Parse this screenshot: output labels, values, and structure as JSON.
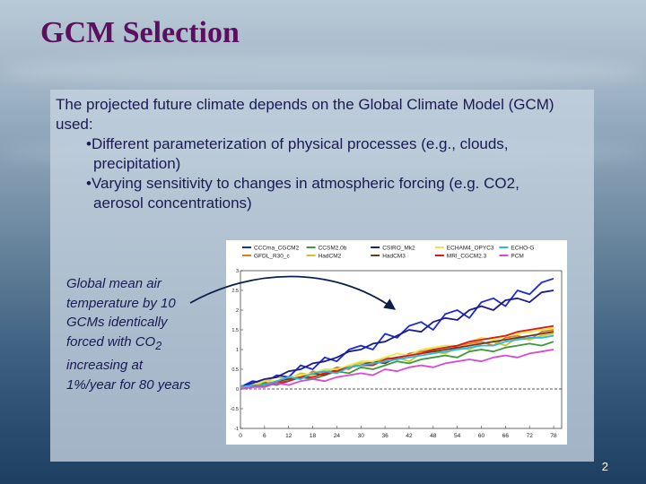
{
  "slide": {
    "title": "GCM Selection",
    "intro_line": "The projected future climate depends on the Global Climate Model (GCM) used:",
    "bullets": [
      {
        "line1": "•Different parameterization of physical processes (e.g., clouds,",
        "line2": "precipitation)"
      },
      {
        "line1": "•Varying sensitivity to changes in atmospheric forcing (e.g. CO2,",
        "line2": "aerosol concentrations)"
      }
    ],
    "caption_before_sub": "Global mean air temperature by 10 GCMs identically forced with CO",
    "caption_sub": "2",
    "caption_after_sub": " increasing at 1%/year for 80 years",
    "page_number": "2"
  },
  "chart_data": {
    "type": "line",
    "x": [
      0,
      3,
      6,
      9,
      12,
      15,
      18,
      21,
      24,
      27,
      30,
      33,
      36,
      39,
      42,
      45,
      48,
      51,
      54,
      57,
      60,
      63,
      66,
      69,
      72,
      75,
      78
    ],
    "xticks": [
      "0",
      "6",
      "12",
      "18",
      "24",
      "30",
      "36",
      "42",
      "48",
      "54",
      "60",
      "66",
      "72",
      "78"
    ],
    "yticks": [
      "-1",
      "-0.5",
      "0",
      "0.5",
      "1",
      "1.5",
      "2",
      "2.5",
      "3"
    ],
    "ylim": [
      -1,
      3
    ],
    "xlim": [
      0,
      80
    ],
    "series": [
      {
        "name": "CCCma_CGCM2",
        "color": "#1a2bd6",
        "values": [
          0.05,
          0.2,
          0.15,
          0.35,
          0.3,
          0.6,
          0.5,
          0.8,
          0.7,
          1.0,
          1.1,
          1.0,
          1.4,
          1.3,
          1.6,
          1.7,
          1.5,
          1.9,
          2.0,
          1.8,
          2.2,
          2.3,
          2.1,
          2.5,
          2.4,
          2.7,
          2.8
        ]
      },
      {
        "name": "GFDL_R30_c",
        "color": "#e37b1e",
        "values": [
          0.0,
          0.1,
          0.2,
          0.15,
          0.3,
          0.25,
          0.45,
          0.4,
          0.55,
          0.5,
          0.7,
          0.65,
          0.8,
          0.75,
          0.9,
          0.95,
          1.0,
          0.9,
          1.1,
          1.15,
          1.2,
          1.1,
          1.3,
          1.35,
          1.25,
          1.45,
          1.5
        ]
      },
      {
        "name": "CCSM2.0b",
        "color": "#3a9a3a",
        "values": [
          0.0,
          0.05,
          0.15,
          0.1,
          0.2,
          0.3,
          0.25,
          0.35,
          0.45,
          0.4,
          0.55,
          0.5,
          0.6,
          0.7,
          0.65,
          0.75,
          0.8,
          0.85,
          0.8,
          0.95,
          1.0,
          0.95,
          1.05,
          1.1,
          1.15,
          1.1,
          1.2
        ]
      },
      {
        "name": "HadCM2",
        "color": "#c8c82a",
        "values": [
          0.1,
          0.05,
          0.2,
          0.3,
          0.25,
          0.4,
          0.35,
          0.5,
          0.45,
          0.6,
          0.65,
          0.6,
          0.75,
          0.8,
          0.7,
          0.9,
          0.95,
          0.9,
          1.05,
          1.0,
          1.15,
          1.2,
          1.1,
          1.3,
          1.25,
          1.35,
          1.4
        ]
      },
      {
        "name": "CSIRO_Mk2",
        "color": "#1b1b8a",
        "values": [
          0.05,
          0.15,
          0.25,
          0.3,
          0.45,
          0.5,
          0.65,
          0.7,
          0.8,
          0.95,
          1.0,
          1.15,
          1.2,
          1.35,
          1.5,
          1.45,
          1.7,
          1.8,
          1.75,
          2.0,
          2.1,
          2.0,
          2.25,
          2.3,
          2.2,
          2.45,
          2.5
        ]
      },
      {
        "name": "HadCM3",
        "color": "#6b3a1e",
        "values": [
          0.0,
          0.1,
          0.05,
          0.2,
          0.25,
          0.3,
          0.4,
          0.35,
          0.5,
          0.55,
          0.6,
          0.7,
          0.65,
          0.8,
          0.85,
          0.9,
          0.95,
          1.0,
          1.05,
          1.1,
          1.15,
          1.2,
          1.25,
          1.3,
          1.35,
          1.4,
          1.45
        ]
      },
      {
        "name": "ECHAM4_OPYC3",
        "color": "#e8e84a",
        "values": [
          0.0,
          0.1,
          0.2,
          0.2,
          0.3,
          0.35,
          0.4,
          0.5,
          0.5,
          0.6,
          0.7,
          0.7,
          0.8,
          0.9,
          0.85,
          1.0,
          1.05,
          1.1,
          1.1,
          1.2,
          1.3,
          1.25,
          1.35,
          1.4,
          1.45,
          1.5,
          1.55
        ]
      },
      {
        "name": "MRI_CGCM2.3",
        "color": "#d81a1a",
        "values": [
          0.0,
          0.05,
          0.1,
          0.15,
          0.2,
          0.3,
          0.3,
          0.4,
          0.45,
          0.55,
          0.6,
          0.6,
          0.75,
          0.8,
          0.85,
          0.9,
          1.0,
          1.05,
          1.1,
          1.2,
          1.25,
          1.3,
          1.35,
          1.45,
          1.5,
          1.55,
          1.6
        ]
      },
      {
        "name": "ECHO-G",
        "color": "#2ab8e8",
        "values": [
          0.05,
          0.1,
          0.1,
          0.2,
          0.3,
          0.25,
          0.4,
          0.45,
          0.4,
          0.55,
          0.6,
          0.65,
          0.7,
          0.75,
          0.8,
          0.85,
          0.9,
          0.95,
          1.0,
          1.05,
          1.1,
          1.1,
          1.2,
          1.25,
          1.3,
          1.3,
          1.35
        ]
      },
      {
        "name": "PCM",
        "color": "#d64ad6",
        "values": [
          0.0,
          0.05,
          0.05,
          0.15,
          0.1,
          0.2,
          0.25,
          0.2,
          0.3,
          0.35,
          0.4,
          0.35,
          0.5,
          0.45,
          0.55,
          0.6,
          0.55,
          0.65,
          0.7,
          0.75,
          0.7,
          0.8,
          0.85,
          0.8,
          0.9,
          0.95,
          1.0
        ]
      }
    ],
    "legend_position": "top",
    "zero_line": "dashed"
  }
}
